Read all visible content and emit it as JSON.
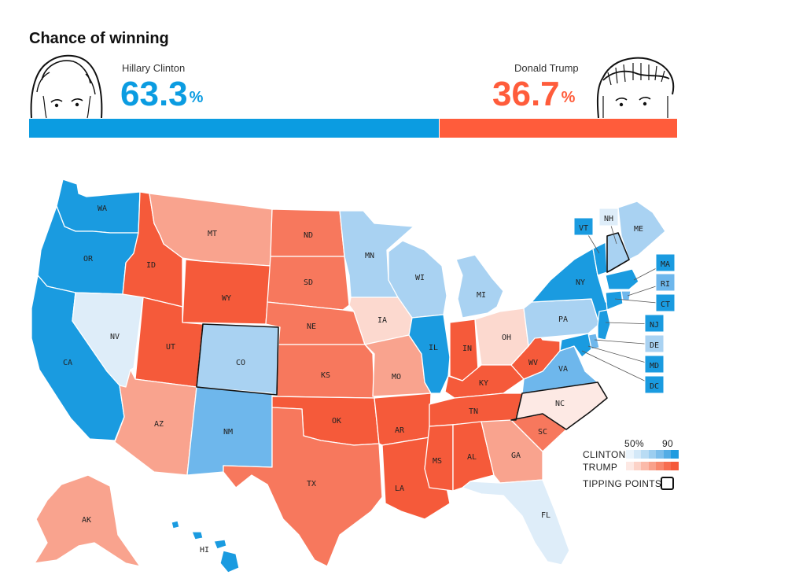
{
  "header": {
    "title": "Chance of winning",
    "clinton": {
      "name": "Hillary Clinton",
      "pct": "63.3",
      "pct_symbol": "%",
      "value": 63.3,
      "color": "#0b9ce1"
    },
    "trump": {
      "name": "Donald Trump",
      "pct": "36.7",
      "pct_symbol": "%",
      "value": 36.7,
      "color": "#ff5c3b"
    }
  },
  "legend": {
    "scale_min": "50%",
    "scale_max": "90",
    "clinton_label": "CLINTON",
    "trump_label": "TRUMP",
    "tipping_label": "TIPPING POINTS",
    "clinton_ramp": [
      "#eaf4fc",
      "#d3e8f8",
      "#b9dcf4",
      "#9ccef0",
      "#7cbeeb",
      "#54ade5",
      "#1f9be0"
    ],
    "trump_ramp": [
      "#fde8e3",
      "#fcd2c7",
      "#fbbaa9",
      "#f9a18b",
      "#f8886d",
      "#f76e50",
      "#f55a3a"
    ]
  },
  "states": {
    "WA": "WA",
    "OR": "OR",
    "CA": "CA",
    "NV": "NV",
    "ID": "ID",
    "MT": "MT",
    "WY": "WY",
    "UT": "UT",
    "AZ": "AZ",
    "CO": "CO",
    "NM": "NM",
    "ND": "ND",
    "SD": "SD",
    "NE": "NE",
    "KS": "KS",
    "OK": "OK",
    "TX": "TX",
    "MN": "MN",
    "IA": "IA",
    "MO": "MO",
    "AR": "AR",
    "LA": "LA",
    "WI": "WI",
    "IL": "IL",
    "MI": "MI",
    "IN": "IN",
    "OH": "OH",
    "KY": "KY",
    "TN": "TN",
    "MS": "MS",
    "AL": "AL",
    "GA": "GA",
    "FL": "FL",
    "SC": "SC",
    "NC": "NC",
    "VA": "VA",
    "WV": "WV",
    "PA": "PA",
    "NY": "NY",
    "ME": "ME",
    "AK": "AK",
    "HI": "HI",
    "VT": "VT",
    "NH": "NH",
    "MA": "MA",
    "RI": "RI",
    "CT": "CT",
    "NJ": "NJ",
    "DE": "DE",
    "MD": "MD",
    "DC": "DC"
  },
  "colors": {
    "strong_blue": "#1a9be0",
    "mid_blue": "#6eb7ec",
    "light_blue": "#a9d2f2",
    "pale_blue": "#deedf9",
    "strong_red": "#f55a3a",
    "mid_red": "#f7785d",
    "light_red": "#f9a38e",
    "pale_red": "#fcd9cf",
    "faint_red": "#fde9e4"
  }
}
